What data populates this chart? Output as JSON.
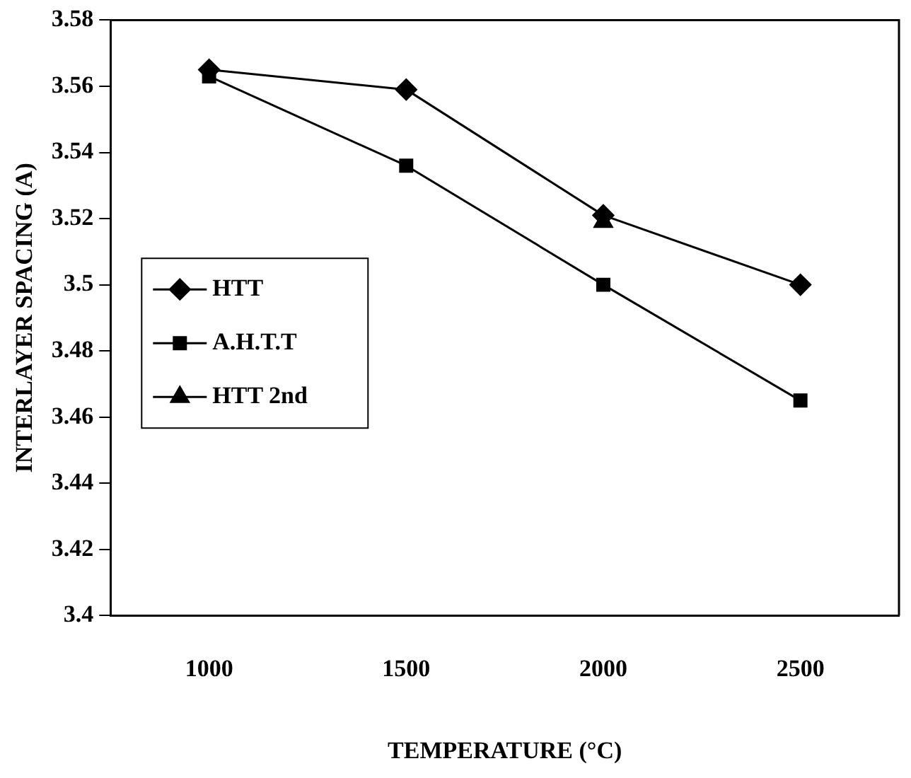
{
  "chart_data": {
    "type": "line",
    "xlabel": "TEMPERATURE (°C)",
    "ylabel": "INTERLAYER SPACING (A)",
    "categories": [
      "1000",
      "1500",
      "2000",
      "2500"
    ],
    "series": [
      {
        "name": "HTT",
        "color": "#000000",
        "marker": "diamond",
        "values": [
          3.565,
          3.559,
          3.521,
          3.5
        ]
      },
      {
        "name": "A.H.T.T",
        "color": "#000000",
        "marker": "square",
        "values": [
          3.563,
          3.536,
          3.5,
          3.465
        ]
      },
      {
        "name": "HTT 2nd",
        "color": "#000000",
        "marker": "triangle",
        "values": [
          null,
          null,
          3.519,
          null
        ]
      }
    ],
    "ylim": [
      3.4,
      3.58
    ],
    "yticks": [
      3.4,
      3.42,
      3.44,
      3.46,
      3.48,
      3.5,
      3.52,
      3.54,
      3.56,
      3.58
    ],
    "grid": false,
    "legend": "left",
    "line_style": "solid"
  }
}
